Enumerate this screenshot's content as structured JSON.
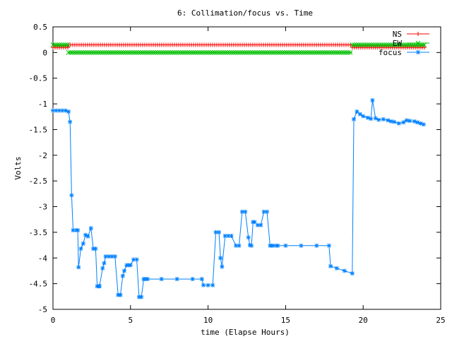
{
  "chart_data": {
    "type": "line",
    "title": "6: Collimation/focus vs. Time",
    "xlabel": "time (Elapse Hours)",
    "ylabel": "Volts",
    "xlim": [
      0,
      25
    ],
    "ylim": [
      -5,
      0.5
    ],
    "xticks": [
      0,
      5,
      10,
      15,
      20,
      25
    ],
    "xtick_labels": [
      "0",
      "5",
      "10",
      "15",
      "20",
      "25"
    ],
    "yticks": [
      0.5,
      0,
      -0.5,
      -1,
      -1.5,
      -2,
      -2.5,
      -3,
      -3.5,
      -4,
      -4.5,
      -5
    ],
    "ytick_labels": [
      "0.5",
      "0",
      "-0.5",
      "-1",
      "-1.5",
      "-2",
      "-2.5",
      "-3",
      "-3.5",
      "-4",
      "-4.5",
      "-5"
    ],
    "grid": false,
    "legend_position": "top-right",
    "series": [
      {
        "name": "NS",
        "color": "#ff0000",
        "marker": "plus",
        "segments": [
          {
            "x_start": 0.0,
            "x_end": 1.0,
            "y": 0.1
          },
          {
            "x_start": 1.0,
            "x_end": 19.3,
            "y": 0.15
          },
          {
            "x_start": 19.3,
            "x_end": 24.0,
            "y": 0.1
          }
        ]
      },
      {
        "name": "EW",
        "color": "#00c000",
        "marker": "x",
        "segments": [
          {
            "x_start": 0.0,
            "x_end": 1.0,
            "y": 0.15
          },
          {
            "x_start": 1.0,
            "x_end": 19.3,
            "y": 0.0
          },
          {
            "x_start": 19.3,
            "x_end": 24.0,
            "y": 0.15
          }
        ]
      },
      {
        "name": "focus",
        "color": "#0080ff",
        "marker": "star",
        "x": [
          0.0,
          0.2,
          0.4,
          0.6,
          0.8,
          1.0,
          1.1,
          1.2,
          1.3,
          1.5,
          1.6,
          1.65,
          1.8,
          1.95,
          2.1,
          2.25,
          2.45,
          2.6,
          2.75,
          2.85,
          2.95,
          3.0,
          3.2,
          3.3,
          3.4,
          3.6,
          3.8,
          4.0,
          4.2,
          4.35,
          4.5,
          4.6,
          4.75,
          4.9,
          5.0,
          5.2,
          5.4,
          5.55,
          5.7,
          5.85,
          6.0,
          6.1,
          7.0,
          8.0,
          9.0,
          9.6,
          9.7,
          10.0,
          10.3,
          10.5,
          10.7,
          10.8,
          10.9,
          11.1,
          11.3,
          11.5,
          11.8,
          12.0,
          12.2,
          12.4,
          12.6,
          12.7,
          12.8,
          12.9,
          13.0,
          13.2,
          13.4,
          13.6,
          13.8,
          14.0,
          14.1,
          14.2,
          14.4,
          14.5,
          15.0,
          16.0,
          17.0,
          17.8,
          17.9,
          18.3,
          18.8,
          19.3,
          19.4,
          19.6,
          19.8,
          20.0,
          20.3,
          20.5,
          20.6,
          20.8,
          21.0,
          21.3,
          21.6,
          21.8,
          22.0,
          22.3,
          22.6,
          22.8,
          23.0,
          23.3,
          23.5,
          23.7,
          23.9
        ],
        "y": [
          -1.13,
          -1.13,
          -1.13,
          -1.13,
          -1.13,
          -1.15,
          -1.35,
          -2.78,
          -3.46,
          -3.46,
          -3.46,
          -4.18,
          -3.82,
          -3.72,
          -3.55,
          -3.58,
          -3.42,
          -3.82,
          -3.82,
          -4.55,
          -4.55,
          -4.55,
          -4.2,
          -4.1,
          -3.97,
          -3.97,
          -3.97,
          -3.97,
          -4.72,
          -4.72,
          -4.35,
          -4.25,
          -4.14,
          -4.14,
          -4.14,
          -4.03,
          -4.03,
          -4.76,
          -4.76,
          -4.41,
          -4.41,
          -4.41,
          -4.41,
          -4.41,
          -4.41,
          -4.41,
          -4.53,
          -4.53,
          -4.53,
          -3.5,
          -3.5,
          -4.0,
          -4.17,
          -3.57,
          -3.57,
          -3.57,
          -3.76,
          -3.76,
          -3.1,
          -3.1,
          -3.6,
          -3.75,
          -3.76,
          -3.3,
          -3.3,
          -3.36,
          -3.36,
          -3.1,
          -3.1,
          -3.76,
          -3.76,
          -3.76,
          -3.76,
          -3.76,
          -3.76,
          -3.76,
          -3.76,
          -3.76,
          -4.16,
          -4.2,
          -4.25,
          -4.3,
          -1.3,
          -1.15,
          -1.2,
          -1.24,
          -1.27,
          -1.29,
          -0.93,
          -1.28,
          -1.31,
          -1.3,
          -1.32,
          -1.34,
          -1.35,
          -1.38,
          -1.36,
          -1.32,
          -1.33,
          -1.34,
          -1.36,
          -1.38,
          -1.4
        ]
      }
    ]
  }
}
